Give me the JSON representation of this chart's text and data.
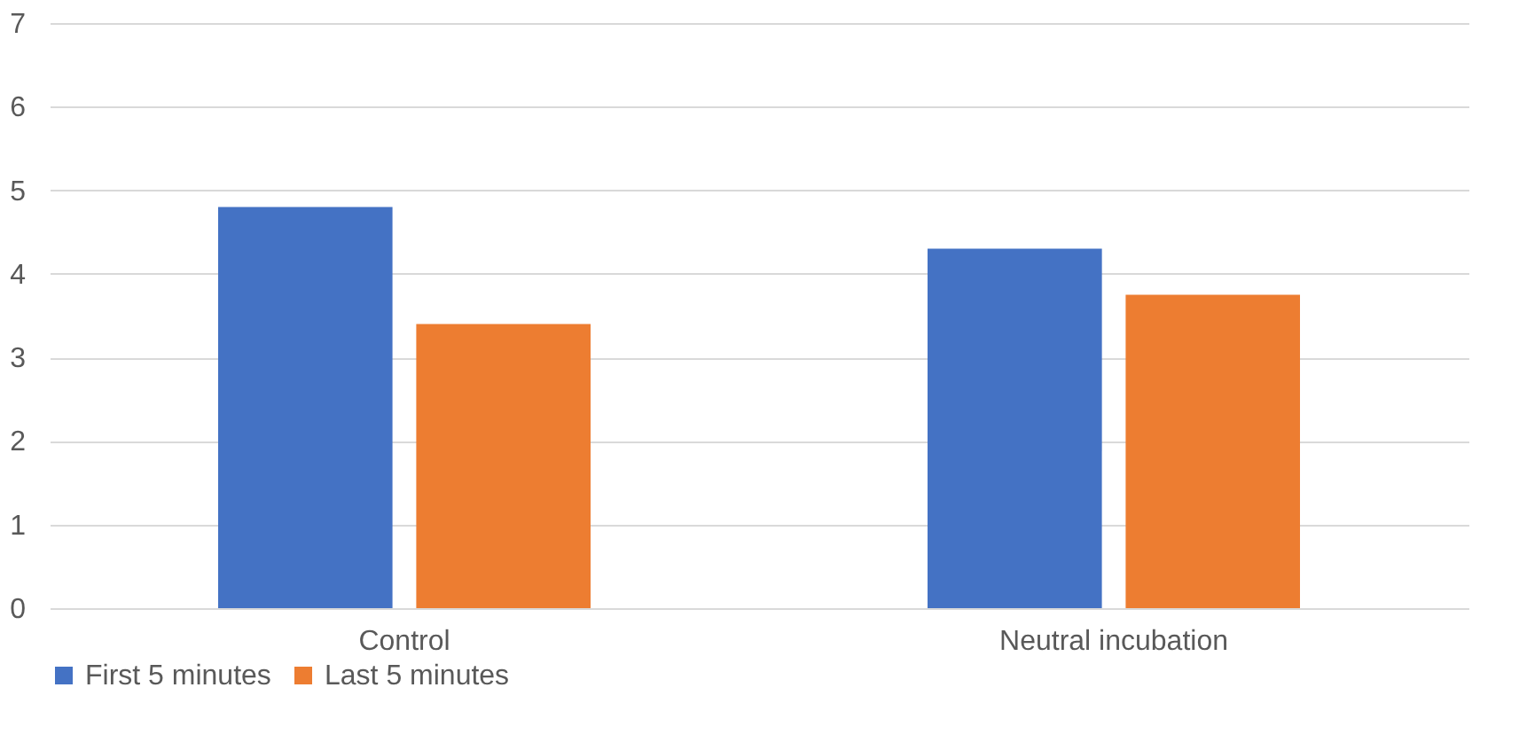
{
  "chart_data": {
    "type": "bar",
    "categories": [
      "Control",
      "Neutral incubation"
    ],
    "series": [
      {
        "name": "First 5 minutes",
        "color": "#4472c4",
        "values": [
          4.8,
          4.3
        ]
      },
      {
        "name": "Last 5 minutes",
        "color": "#ed7d31",
        "values": [
          3.4,
          3.75
        ]
      }
    ],
    "ylim": [
      0,
      7
    ],
    "yticks": [
      0,
      1,
      2,
      3,
      4,
      5,
      6,
      7
    ],
    "grid": "y",
    "legend": "bottom"
  }
}
